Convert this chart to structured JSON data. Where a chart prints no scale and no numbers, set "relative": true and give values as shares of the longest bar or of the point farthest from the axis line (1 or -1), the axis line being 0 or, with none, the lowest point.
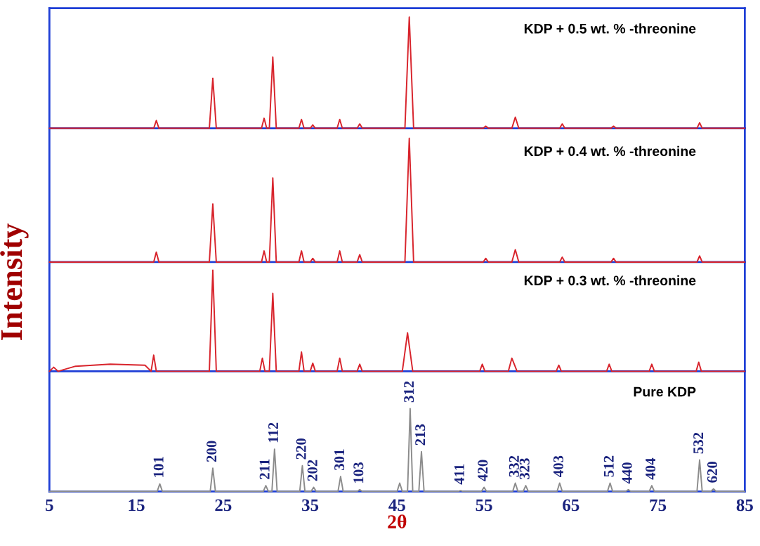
{
  "chart_data": [
    {
      "type": "line",
      "relative": true,
      "xlim": [
        5,
        85
      ],
      "tick_labels": false,
      "annotations": [
        "KDP + 0.5 wt. % -threonine"
      ],
      "x": [
        5,
        17.0,
        17.3,
        17.6,
        23.4,
        23.8,
        24.2,
        29.4,
        29.7,
        30.0,
        30.3,
        30.7,
        31.1,
        33.7,
        34.0,
        34.3,
        35.0,
        35.3,
        35.6,
        38.1,
        38.4,
        38.7,
        40.4,
        40.7,
        41.0,
        45.9,
        46.4,
        46.9,
        54.9,
        55.2,
        55.5,
        58.2,
        58.6,
        59.0,
        63.7,
        64.0,
        64.3,
        69.6,
        69.9,
        70.2,
        79.5,
        79.8,
        80.1,
        85
      ],
      "series": [
        {
          "color": "#d8242c",
          "values": [
            0,
            0,
            0.07,
            0,
            0,
            0.45,
            0,
            0,
            0.09,
            0,
            0,
            0.64,
            0,
            0,
            0.08,
            0,
            0,
            0.03,
            0,
            0,
            0.08,
            0,
            0,
            0.04,
            0,
            0,
            1,
            0,
            0,
            0.02,
            0,
            0,
            0.1,
            0,
            0,
            0.04,
            0,
            0,
            0.02,
            0,
            0,
            0.05,
            0,
            0
          ]
        }
      ]
    },
    {
      "type": "line",
      "relative": true,
      "xlim": [
        5,
        85
      ],
      "tick_labels": false,
      "ylabel": "Intensity",
      "annotations": [
        "KDP + 0.4 wt. % -threonine"
      ],
      "x": [
        5,
        17.0,
        17.3,
        17.6,
        23.4,
        23.8,
        24.2,
        29.4,
        29.7,
        30.0,
        30.3,
        30.7,
        31.1,
        33.7,
        34.0,
        34.3,
        35.0,
        35.3,
        35.6,
        38.1,
        38.4,
        38.7,
        40.4,
        40.7,
        41.0,
        45.9,
        46.4,
        46.9,
        54.9,
        55.2,
        55.5,
        58.2,
        58.6,
        59.0,
        63.7,
        64.0,
        64.3,
        69.6,
        69.9,
        70.2,
        79.5,
        79.8,
        80.1,
        85
      ],
      "series": [
        {
          "color": "#d8242c",
          "values": [
            0,
            0,
            0.08,
            0,
            0,
            0.47,
            0,
            0,
            0.09,
            0,
            0,
            0.68,
            0,
            0,
            0.09,
            0,
            0,
            0.03,
            0,
            0,
            0.09,
            0,
            0,
            0.06,
            0,
            0,
            1,
            0,
            0,
            0.03,
            0,
            0,
            0.1,
            0,
            0,
            0.04,
            0,
            0,
            0.03,
            0,
            0,
            0.05,
            0,
            0
          ]
        }
      ]
    },
    {
      "type": "line",
      "relative": true,
      "xlim": [
        5,
        85
      ],
      "tick_labels": false,
      "annotations": [
        "KDP + 0.3 wt. % -threonine"
      ],
      "x": [
        5,
        5.5,
        6,
        8,
        12,
        16,
        16.7,
        17.0,
        17.3,
        23.4,
        23.8,
        24.2,
        29.2,
        29.5,
        29.8,
        30.3,
        30.7,
        31.1,
        33.7,
        34.0,
        34.3,
        35.0,
        35.3,
        35.6,
        38.1,
        38.4,
        38.7,
        40.4,
        40.7,
        41.0,
        45.6,
        46.2,
        46.8,
        54.5,
        54.8,
        55.1,
        57.8,
        58.2,
        58.8,
        63.3,
        63.6,
        63.9,
        69.1,
        69.4,
        69.7,
        74.0,
        74.3,
        74.6,
        79.4,
        79.7,
        80.0,
        85
      ],
      "series": [
        {
          "color": "#d8242c",
          "values": [
            0,
            0.04,
            0,
            0.05,
            0.07,
            0.06,
            0,
            0.16,
            0,
            0,
            1,
            0,
            0,
            0.13,
            0,
            0,
            0.77,
            0,
            0,
            0.19,
            0,
            0,
            0.08,
            0,
            0,
            0.13,
            0,
            0,
            0.07,
            0,
            0,
            0.38,
            0,
            0,
            0.07,
            0,
            0,
            0.13,
            0,
            0,
            0.06,
            0,
            0,
            0.07,
            0,
            0,
            0.07,
            0,
            0,
            0.09,
            0,
            0
          ]
        }
      ]
    },
    {
      "type": "line",
      "relative": true,
      "xlim": [
        5,
        85
      ],
      "xticks": [
        5,
        15,
        25,
        35,
        45,
        55,
        65,
        75,
        85
      ],
      "tick_labels": "x",
      "xlabel": "2θ",
      "x": [
        5,
        17.4,
        17.7,
        18.0,
        23.5,
        23.8,
        24.1,
        29.6,
        29.9,
        30.2,
        30.6,
        30.9,
        31.2,
        33.8,
        34.1,
        34.4,
        35.1,
        35.4,
        35.7,
        38.2,
        38.5,
        38.8,
        40.4,
        40.7,
        41.0,
        45.0,
        45.3,
        45.6,
        46.2,
        46.5,
        46.8,
        47.5,
        47.8,
        48.1,
        52.0,
        52.3,
        52.6,
        54.7,
        55.0,
        55.3,
        58.3,
        58.6,
        58.9,
        59.5,
        59.8,
        60.1,
        63.4,
        63.7,
        64.0,
        69.2,
        69.5,
        69.8,
        71.3,
        71.6,
        71.9,
        74.0,
        74.3,
        74.6,
        79.5,
        79.8,
        80.1,
        81.1,
        81.4,
        81.7,
        85
      ],
      "series": [
        {
          "color": "#8c8c8c",
          "values": [
            0,
            0,
            0.09,
            0,
            0,
            0.28,
            0,
            0,
            0.07,
            0,
            0,
            0.51,
            0,
            0,
            0.31,
            0,
            0,
            0.05,
            0,
            0,
            0.18,
            0,
            0,
            0.02,
            0,
            0,
            0.1,
            0,
            0,
            1,
            0,
            0,
            0.48,
            0,
            0,
            0.01,
            0,
            0,
            0.05,
            0,
            0,
            0.1,
            0,
            0,
            0.07,
            0,
            0,
            0.1,
            0,
            0,
            0.1,
            0,
            0,
            0.02,
            0,
            0,
            0.07,
            0,
            0,
            0.38,
            0,
            0,
            0.03,
            0,
            0
          ]
        }
      ],
      "annotations": [
        "Pure KDP",
        {
          "text": "101",
          "x": 17.7,
          "y": 0.09
        },
        {
          "text": "200",
          "x": 23.8,
          "y": 0.28
        },
        {
          "text": "211",
          "x": 29.9,
          "y": 0.07
        },
        {
          "text": "112",
          "x": 30.9,
          "y": 0.51
        },
        {
          "text": "220",
          "x": 34.1,
          "y": 0.31
        },
        {
          "text": "202",
          "x": 35.4,
          "y": 0.05
        },
        {
          "text": "301",
          "x": 38.5,
          "y": 0.18
        },
        {
          "text": "103",
          "x": 40.7,
          "y": 0.02
        },
        {
          "text": "312",
          "x": 46.5,
          "y": 1
        },
        {
          "text": "213",
          "x": 47.8,
          "y": 0.48
        },
        {
          "text": "411",
          "x": 52.3,
          "y": 0.01
        },
        {
          "text": "420",
          "x": 55.0,
          "y": 0.05
        },
        {
          "text": "332",
          "x": 58.6,
          "y": 0.1
        },
        {
          "text": "323",
          "x": 59.8,
          "y": 0.07
        },
        {
          "text": "403",
          "x": 63.7,
          "y": 0.1
        },
        {
          "text": "512",
          "x": 69.5,
          "y": 0.1
        },
        {
          "text": "440",
          "x": 71.6,
          "y": 0.02
        },
        {
          "text": "404",
          "x": 74.3,
          "y": 0.07
        },
        {
          "text": "532",
          "x": 79.8,
          "y": 0.38
        },
        {
          "text": "620",
          "x": 81.4,
          "y": 0.03
        }
      ]
    }
  ]
}
